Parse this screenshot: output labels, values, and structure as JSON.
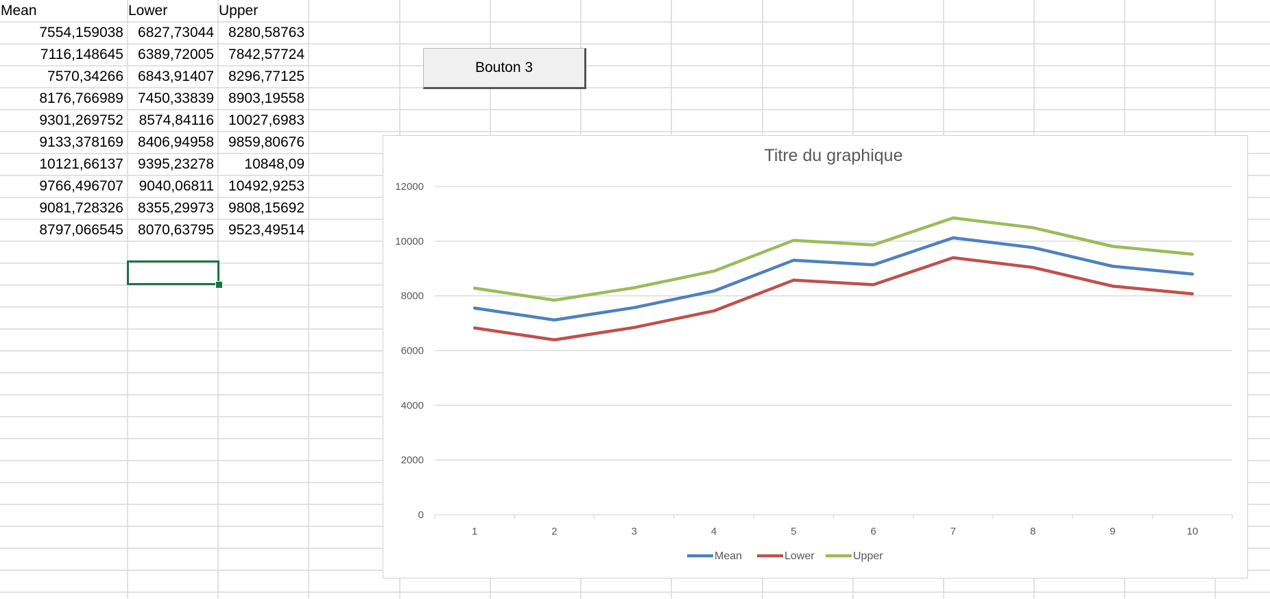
{
  "sheet": {
    "headers": [
      "Mean",
      "Lower",
      "Upper"
    ],
    "rows": [
      [
        "7554,159038",
        "6827,73044",
        "8280,58763"
      ],
      [
        "7116,148645",
        "6389,72005",
        "7842,57724"
      ],
      [
        "7570,34266",
        "6843,91407",
        "8296,77125"
      ],
      [
        "8176,766989",
        "7450,33839",
        "8903,19558"
      ],
      [
        "9301,269752",
        "8574,84116",
        "10027,6983"
      ],
      [
        "9133,378169",
        "8406,94958",
        "9859,80676"
      ],
      [
        "10121,66137",
        "9395,23278",
        "10848,09"
      ],
      [
        "9766,496707",
        "9040,06811",
        "10492,9253"
      ],
      [
        "9081,728326",
        "8355,29973",
        "9808,15692"
      ],
      [
        "8797,066545",
        "8070,63795",
        "9523,49514"
      ]
    ]
  },
  "button": {
    "label": "Bouton 3"
  },
  "chart_data": {
    "type": "line",
    "title": "Titre du graphique",
    "x": [
      1,
      2,
      3,
      4,
      5,
      6,
      7,
      8,
      9,
      10
    ],
    "ylim": [
      0,
      12000
    ],
    "yticks": [
      0,
      2000,
      4000,
      6000,
      8000,
      10000,
      12000
    ],
    "grid": true,
    "legend": "bottom",
    "series": [
      {
        "name": "Mean",
        "color": "#4f81bd",
        "values": [
          7554.159038,
          7116.148645,
          7570.34266,
          8176.766989,
          9301.269752,
          9133.378169,
          10121.66137,
          9766.496707,
          9081.728326,
          8797.066545
        ]
      },
      {
        "name": "Lower",
        "color": "#c0504d",
        "values": [
          6827.73044,
          6389.72005,
          6843.91407,
          7450.33839,
          8574.84116,
          8406.94958,
          9395.23278,
          9040.06811,
          8355.29973,
          8070.63795
        ]
      },
      {
        "name": "Upper",
        "color": "#9bbb59",
        "values": [
          8280.58763,
          7842.57724,
          8296.77125,
          8903.19558,
          10027.6983,
          9859.80676,
          10848.09,
          10492.9253,
          9808.15692,
          9523.49514
        ]
      }
    ]
  }
}
